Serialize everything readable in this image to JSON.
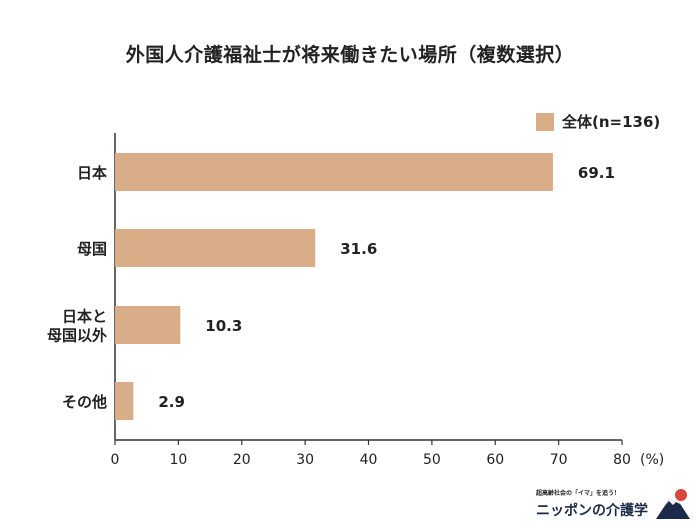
{
  "chart_data": {
    "type": "bar",
    "orientation": "horizontal",
    "title": "外国人介護福祉士が将来働きたい場所（複数選択）",
    "categories": [
      "日本",
      "母国",
      "日本と\n母国以外",
      "その他"
    ],
    "series": [
      {
        "name": "全体(n=136)",
        "values": [
          69.1,
          31.6,
          10.3,
          2.9
        ]
      }
    ],
    "data_labels": [
      "69.1",
      "31.6",
      "10.3",
      "2.9"
    ],
    "x_ticks": [
      "0",
      "10",
      "20",
      "30",
      "40",
      "50",
      "60",
      "70",
      "80"
    ],
    "x_unit": "(%)",
    "xlim": [
      0,
      80
    ],
    "grid": false,
    "legend_position": "top-right",
    "colors": {
      "bar": "#d9ad87",
      "axis": "#333333",
      "text": "#222222"
    }
  },
  "logo": {
    "tagline": "超高齢社会の「イマ」を追う！",
    "brand": "ニッポンの介護学"
  }
}
